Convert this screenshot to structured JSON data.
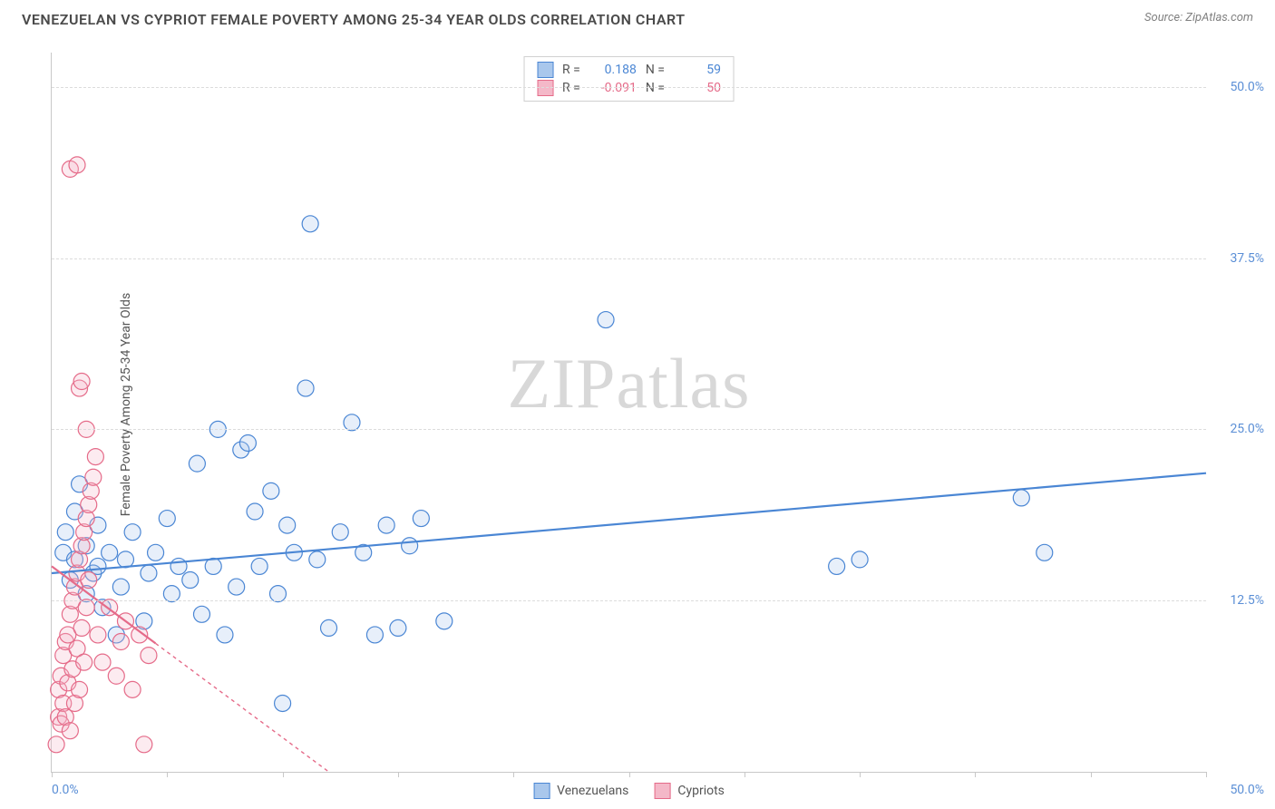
{
  "header": {
    "title": "VENEZUELAN VS CYPRIOT FEMALE POVERTY AMONG 25-34 YEAR OLDS CORRELATION CHART",
    "source": "Source: ZipAtlas.com"
  },
  "watermark": {
    "zip": "ZIP",
    "atlas": "atlas"
  },
  "chart": {
    "type": "scatter",
    "ylabel": "Female Poverty Among 25-34 Year Olds",
    "background_color": "#ffffff",
    "grid_color": "#dcdcdc",
    "axis_color": "#c8c8c8",
    "label_color": "#5b8fd6",
    "xlim": [
      0,
      50
    ],
    "ylim": [
      0,
      52.5
    ],
    "xaxis_min_label": "0.0%",
    "xaxis_max_label": "50.0%",
    "xticks": [
      0,
      5,
      10,
      15,
      20,
      25,
      30,
      35,
      40,
      45,
      50
    ],
    "yticks": [
      {
        "v": 12.5,
        "label": "12.5%"
      },
      {
        "v": 25.0,
        "label": "25.0%"
      },
      {
        "v": 37.5,
        "label": "37.5%"
      },
      {
        "v": 50.0,
        "label": "50.0%"
      }
    ],
    "marker_radius": 9,
    "marker_stroke_width": 1.2,
    "marker_fill_opacity": 0.28,
    "line_width": 2.2,
    "series": [
      {
        "name": "Venezuelans",
        "color_stroke": "#4a86d4",
        "color_fill": "#a9c7ec",
        "R": "0.188",
        "N": "59",
        "trend": {
          "x1": 0,
          "y1": 14.5,
          "x2": 50,
          "y2": 21.8,
          "dash": "none"
        },
        "points": [
          [
            0.5,
            16
          ],
          [
            0.6,
            17.5
          ],
          [
            0.8,
            14
          ],
          [
            1,
            15.5
          ],
          [
            1,
            19
          ],
          [
            1.2,
            21
          ],
          [
            1.5,
            13
          ],
          [
            1.5,
            16.5
          ],
          [
            1.8,
            14.5
          ],
          [
            2,
            15
          ],
          [
            2,
            18
          ],
          [
            2.2,
            12
          ],
          [
            2.5,
            16
          ],
          [
            2.8,
            10
          ],
          [
            3,
            13.5
          ],
          [
            3.2,
            15.5
          ],
          [
            3.5,
            17.5
          ],
          [
            4,
            11
          ],
          [
            4.2,
            14.5
          ],
          [
            4.5,
            16
          ],
          [
            5,
            18.5
          ],
          [
            5.2,
            13
          ],
          [
            5.5,
            15
          ],
          [
            6,
            14
          ],
          [
            6.3,
            22.5
          ],
          [
            6.5,
            11.5
          ],
          [
            7,
            15
          ],
          [
            7.2,
            25
          ],
          [
            7.5,
            10
          ],
          [
            8,
            13.5
          ],
          [
            8.2,
            23.5
          ],
          [
            8.5,
            24
          ],
          [
            8.8,
            19
          ],
          [
            9,
            15
          ],
          [
            9.5,
            20.5
          ],
          [
            9.8,
            13
          ],
          [
            10,
            5
          ],
          [
            10.2,
            18
          ],
          [
            10.5,
            16
          ],
          [
            11,
            28
          ],
          [
            11.2,
            40
          ],
          [
            11.5,
            15.5
          ],
          [
            12,
            10.5
          ],
          [
            12.5,
            17.5
          ],
          [
            13,
            25.5
          ],
          [
            13.5,
            16
          ],
          [
            14,
            10
          ],
          [
            14.5,
            18
          ],
          [
            15,
            10.5
          ],
          [
            15.5,
            16.5
          ],
          [
            16,
            18.5
          ],
          [
            17,
            11
          ],
          [
            24,
            33
          ],
          [
            34,
            15
          ],
          [
            35,
            15.5
          ],
          [
            42,
            20
          ],
          [
            43,
            16
          ]
        ]
      },
      {
        "name": "Cypriots",
        "color_stroke": "#e56b89",
        "color_fill": "#f4b8c8",
        "R": "-0.091",
        "N": "50",
        "trend": {
          "x1": 0,
          "y1": 15,
          "x2": 12,
          "y2": 0,
          "dash": "4 4",
          "solid_to_x": 4.5
        },
        "points": [
          [
            0.2,
            2
          ],
          [
            0.3,
            4
          ],
          [
            0.3,
            6
          ],
          [
            0.4,
            3.5
          ],
          [
            0.4,
            7
          ],
          [
            0.5,
            5
          ],
          [
            0.5,
            8.5
          ],
          [
            0.6,
            4
          ],
          [
            0.6,
            9.5
          ],
          [
            0.7,
            6.5
          ],
          [
            0.7,
            10
          ],
          [
            0.8,
            3
          ],
          [
            0.8,
            11.5
          ],
          [
            0.9,
            7.5
          ],
          [
            0.9,
            12.5
          ],
          [
            1,
            5
          ],
          [
            1,
            13.5
          ],
          [
            1.1,
            9
          ],
          [
            1.1,
            14.5
          ],
          [
            1.2,
            6
          ],
          [
            1.2,
            15.5
          ],
          [
            1.3,
            10.5
          ],
          [
            1.3,
            16.5
          ],
          [
            1.4,
            8
          ],
          [
            1.4,
            17.5
          ],
          [
            1.5,
            12
          ],
          [
            1.5,
            18.5
          ],
          [
            1.6,
            14
          ],
          [
            1.6,
            19.5
          ],
          [
            1.7,
            20.5
          ],
          [
            1.8,
            21.5
          ],
          [
            1.9,
            23
          ],
          [
            1.5,
            25
          ],
          [
            1.2,
            28
          ],
          [
            1.3,
            28.5
          ],
          [
            0.8,
            44
          ],
          [
            1.1,
            44.3
          ],
          [
            2,
            10
          ],
          [
            2.2,
            8
          ],
          [
            2.5,
            12
          ],
          [
            2.8,
            7
          ],
          [
            3,
            9.5
          ],
          [
            3.2,
            11
          ],
          [
            3.5,
            6
          ],
          [
            3.8,
            10
          ],
          [
            4,
            2
          ],
          [
            4.2,
            8.5
          ]
        ]
      }
    ],
    "legend_top": {
      "r_label": "R =",
      "n_label": "N ="
    },
    "legend_bottom": [
      {
        "label": "Venezuelans",
        "fill": "#a9c7ec",
        "stroke": "#4a86d4"
      },
      {
        "label": "Cypriots",
        "fill": "#f4b8c8",
        "stroke": "#e56b89"
      }
    ]
  }
}
